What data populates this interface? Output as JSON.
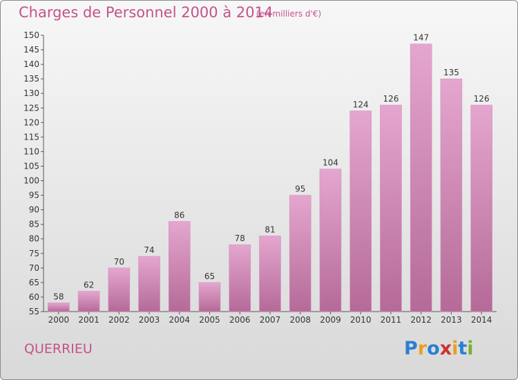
{
  "title": "Charges de Personnel 2000 à 2014",
  "unit_note": "(en milliers d'€)",
  "commune": "QUERRIEU",
  "logo": {
    "letters": [
      "P",
      "r",
      "o",
      "x",
      "i",
      "t",
      "i"
    ],
    "colors": [
      "#2a7fd4",
      "#e8a020",
      "#2a7fd4",
      "#d03030",
      "#e8a020",
      "#2a7fd4",
      "#7ab030"
    ]
  },
  "colors": {
    "bar_top": "#e4a6cf",
    "bar_bottom": "#b56a98",
    "axis_text": "#333333",
    "title": "#c4528b"
  },
  "chart_data": {
    "type": "bar",
    "categories": [
      "2000",
      "2001",
      "2002",
      "2003",
      "2004",
      "2005",
      "2006",
      "2007",
      "2008",
      "2009",
      "2010",
      "2011",
      "2012",
      "2013",
      "2014"
    ],
    "values": [
      58,
      62,
      70,
      74,
      86,
      65,
      78,
      81,
      95,
      104,
      124,
      126,
      147,
      135,
      126
    ],
    "ylim": [
      55,
      150
    ],
    "yticks": [
      55,
      60,
      65,
      70,
      75,
      80,
      85,
      90,
      95,
      100,
      105,
      110,
      115,
      120,
      125,
      130,
      135,
      140,
      145,
      150
    ],
    "grid": false,
    "legend": "none"
  }
}
